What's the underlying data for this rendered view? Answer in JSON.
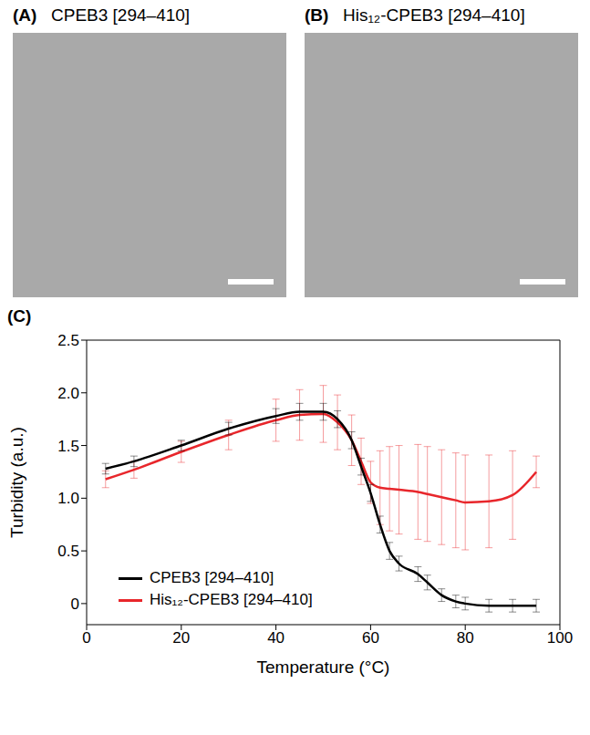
{
  "figure": {
    "panels": [
      {
        "letter": "(A)",
        "title": "CPEB3 [294–410]"
      },
      {
        "letter": "(B)",
        "title": "His₁₂-CPEB3 [294–410]"
      },
      {
        "letter": "(C)"
      }
    ]
  },
  "chart_data": {
    "type": "line",
    "x_label": "Temperature (°C)",
    "y_label": "Turbidity (a.u.)",
    "x": [
      4,
      10,
      20,
      30,
      40,
      45,
      50,
      53,
      56,
      58,
      60,
      62,
      64,
      66,
      70,
      72,
      75,
      78,
      80,
      85,
      90,
      95
    ],
    "series": [
      {
        "name": "His₁₂-CPEB3 [294–410]",
        "color": "#e8262b",
        "values": [
          1.18,
          1.27,
          1.44,
          1.6,
          1.74,
          1.79,
          1.8,
          1.72,
          1.55,
          1.35,
          1.15,
          1.1,
          1.09,
          1.08,
          1.06,
          1.04,
          1.01,
          0.98,
          0.96,
          0.97,
          1.03,
          1.25
        ],
        "errors": [
          0.08,
          0.08,
          0.1,
          0.14,
          0.2,
          0.24,
          0.27,
          0.26,
          0.24,
          0.22,
          0.2,
          0.35,
          0.4,
          0.42,
          0.45,
          0.45,
          0.45,
          0.45,
          0.45,
          0.44,
          0.42,
          0.15
        ]
      },
      {
        "name": "CPEB3 [294–410]",
        "color": "#000000",
        "values": [
          1.28,
          1.35,
          1.5,
          1.66,
          1.78,
          1.82,
          1.82,
          1.75,
          1.55,
          1.3,
          1.05,
          0.75,
          0.5,
          0.38,
          0.28,
          0.2,
          0.08,
          0.02,
          0.0,
          -0.02,
          -0.02,
          -0.02
        ],
        "errors": [
          0.05,
          0.05,
          0.05,
          0.06,
          0.07,
          0.08,
          0.08,
          0.08,
          0.08,
          0.08,
          0.08,
          0.08,
          0.08,
          0.07,
          0.07,
          0.07,
          0.06,
          0.06,
          0.06,
          0.06,
          0.06,
          0.06
        ]
      }
    ],
    "xlim": [
      0,
      100
    ],
    "xticks": [
      0,
      20,
      40,
      60,
      80,
      100
    ],
    "ylim": [
      -0.2,
      2.5
    ],
    "yticks": [
      0,
      0.5,
      {
        "value": 1,
        "label": "1.0"
      },
      1.5,
      {
        "value": 2,
        "label": "2.0"
      },
      2.5
    ],
    "grid": false,
    "legend": "lower left"
  }
}
